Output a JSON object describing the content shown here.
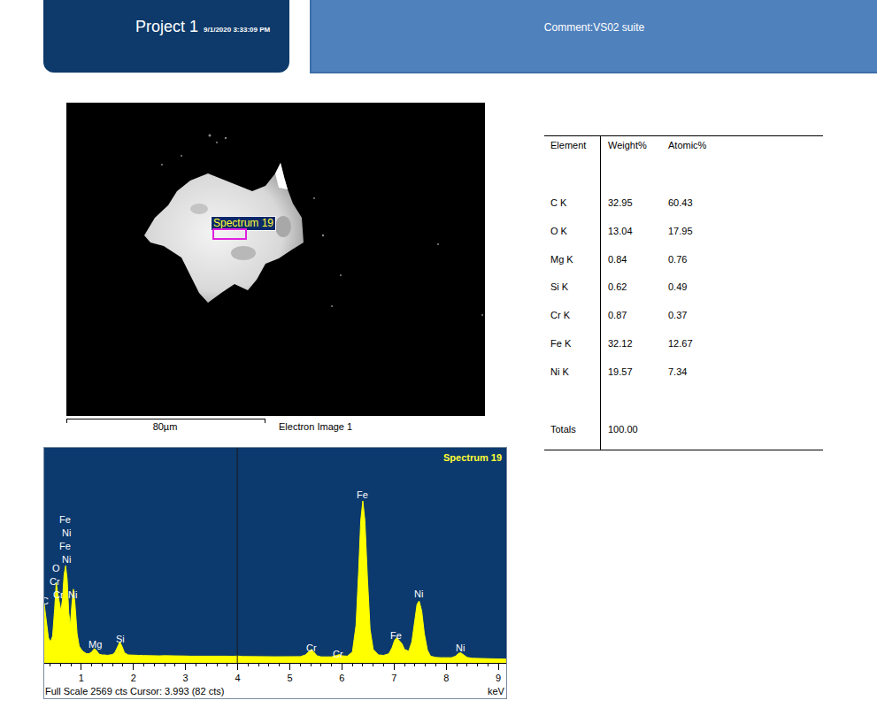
{
  "header": {
    "title": "Project 1",
    "date": "9/1/2020 3:33:09 PM",
    "comment": "Comment:VS02 suite"
  },
  "electron_image": {
    "label": "Spectrum 19",
    "scale_bar": "80µm",
    "caption": "Electron Image 1"
  },
  "table": {
    "header": [
      "Element",
      "Weight%",
      "Atomic%"
    ],
    "rows": [
      [
        "C K",
        "32.95",
        "60.43"
      ],
      [
        "O K",
        "13.04",
        "17.95"
      ],
      [
        "Mg K",
        "0.84",
        "0.76"
      ],
      [
        "Si K",
        "0.62",
        "0.49"
      ],
      [
        "Cr K",
        "0.87",
        "0.37"
      ],
      [
        "Fe K",
        "32.12",
        "12.67"
      ],
      [
        "Ni K",
        "19.57",
        "7.34"
      ]
    ],
    "totals": [
      "Totals",
      "100.00"
    ]
  },
  "chart_data": {
    "type": "area",
    "title": "Spectrum 19",
    "x_label": "keV",
    "status": "Full Scale 2569 cts Cursor: 3.993 (82 cts)",
    "cursor": 3.993,
    "color": "#ffff00",
    "x": [
      0.29,
      0.33,
      0.37,
      0.41,
      0.45,
      0.49,
      0.52,
      0.55,
      0.58,
      0.61,
      0.64,
      0.67,
      0.7,
      0.73,
      0.76,
      0.79,
      0.82,
      0.85,
      0.88,
      0.92,
      0.96,
      1.0,
      1.05,
      1.1,
      1.15,
      1.2,
      1.25,
      1.29,
      1.34,
      1.4,
      1.45,
      1.5,
      1.55,
      1.6,
      1.65,
      1.7,
      1.74,
      1.78,
      1.83,
      1.9,
      2.0,
      2.1,
      2.2,
      2.3,
      2.4,
      2.5,
      2.6,
      2.7,
      2.8,
      2.9,
      3.0,
      3.1,
      3.2,
      3.3,
      3.4,
      3.5,
      3.6,
      3.7,
      3.8,
      3.9,
      4.0,
      4.1,
      4.2,
      4.3,
      4.4,
      4.5,
      4.6,
      4.7,
      4.8,
      4.9,
      5.0,
      5.1,
      5.2,
      5.3,
      5.37,
      5.41,
      5.46,
      5.52,
      5.6,
      5.7,
      5.8,
      5.9,
      5.95,
      6.0,
      6.1,
      6.2,
      6.27,
      6.32,
      6.36,
      6.4,
      6.44,
      6.49,
      6.54,
      6.6,
      6.7,
      6.8,
      6.9,
      6.96,
      7.01,
      7.05,
      7.1,
      7.15,
      7.2,
      7.28,
      7.34,
      7.39,
      7.44,
      7.48,
      7.53,
      7.58,
      7.64,
      7.7,
      7.8,
      7.9,
      8.0,
      8.1,
      8.18,
      8.24,
      8.28,
      8.33,
      8.4,
      8.5,
      8.6,
      8.7,
      8.8,
      8.9,
      9.0,
      9.1,
      9.15
    ],
    "values": [
      700,
      520,
      300,
      250,
      320,
      650,
      960,
      820,
      700,
      620,
      760,
      1050,
      1160,
      1000,
      600,
      450,
      700,
      880,
      700,
      350,
      200,
      160,
      130,
      110,
      110,
      130,
      170,
      150,
      105,
      95,
      95,
      90,
      95,
      100,
      130,
      200,
      250,
      200,
      120,
      95,
      90,
      90,
      88,
      85,
      85,
      84,
      86,
      83,
      84,
      82,
      82,
      80,
      81,
      80,
      80,
      79,
      80,
      78,
      80,
      78,
      82,
      76,
      77,
      75,
      76,
      74,
      74,
      73,
      73,
      72,
      72,
      72,
      75,
      95,
      140,
      160,
      130,
      85,
      72,
      70,
      72,
      90,
      100,
      85,
      80,
      130,
      450,
      1100,
      1700,
      1935,
      1700,
      1000,
      400,
      160,
      95,
      90,
      110,
      180,
      270,
      300,
      260,
      230,
      160,
      140,
      250,
      500,
      700,
      740,
      620,
      350,
      150,
      80,
      65,
      62,
      60,
      62,
      80,
      115,
      120,
      95,
      65,
      55,
      52,
      50,
      50,
      48,
      47,
      46,
      45
    ],
    "xlim": [
      0.29,
      9.15
    ],
    "xticks": [
      1,
      2,
      3,
      4,
      5,
      6,
      7,
      8,
      9
    ],
    "ylim": [
      0,
      2569
    ],
    "tick_labels": "x",
    "grid": false,
    "annotations": [
      {
        "text": "Fe",
        "x": 0.69,
        "y": 1712
      },
      {
        "text": "Ni",
        "x": 0.72,
        "y": 1554
      },
      {
        "text": "Fe",
        "x": 0.69,
        "y": 1395
      },
      {
        "text": "Ni",
        "x": 0.72,
        "y": 1237
      },
      {
        "text": "O",
        "x": 0.52,
        "y": 1131
      },
      {
        "text": "Cr",
        "x": 0.49,
        "y": 972
      },
      {
        "text": "Cr",
        "x": 0.56,
        "y": 814
      },
      {
        "text": "Ni",
        "x": 0.83,
        "y": 814
      },
      {
        "text": "C",
        "x": 0.3,
        "y": 740
      },
      {
        "text": "Mg",
        "x": 1.27,
        "y": 222
      },
      {
        "text": "Si",
        "x": 1.75,
        "y": 285
      },
      {
        "text": "Cr",
        "x": 5.41,
        "y": 180
      },
      {
        "text": "Cr",
        "x": 5.93,
        "y": 106
      },
      {
        "text": "Fe",
        "x": 6.39,
        "y": 2008
      },
      {
        "text": "Fe",
        "x": 7.03,
        "y": 328
      },
      {
        "text": "Ni",
        "x": 7.47,
        "y": 824
      },
      {
        "text": "Ni",
        "x": 8.27,
        "y": 180
      }
    ]
  }
}
